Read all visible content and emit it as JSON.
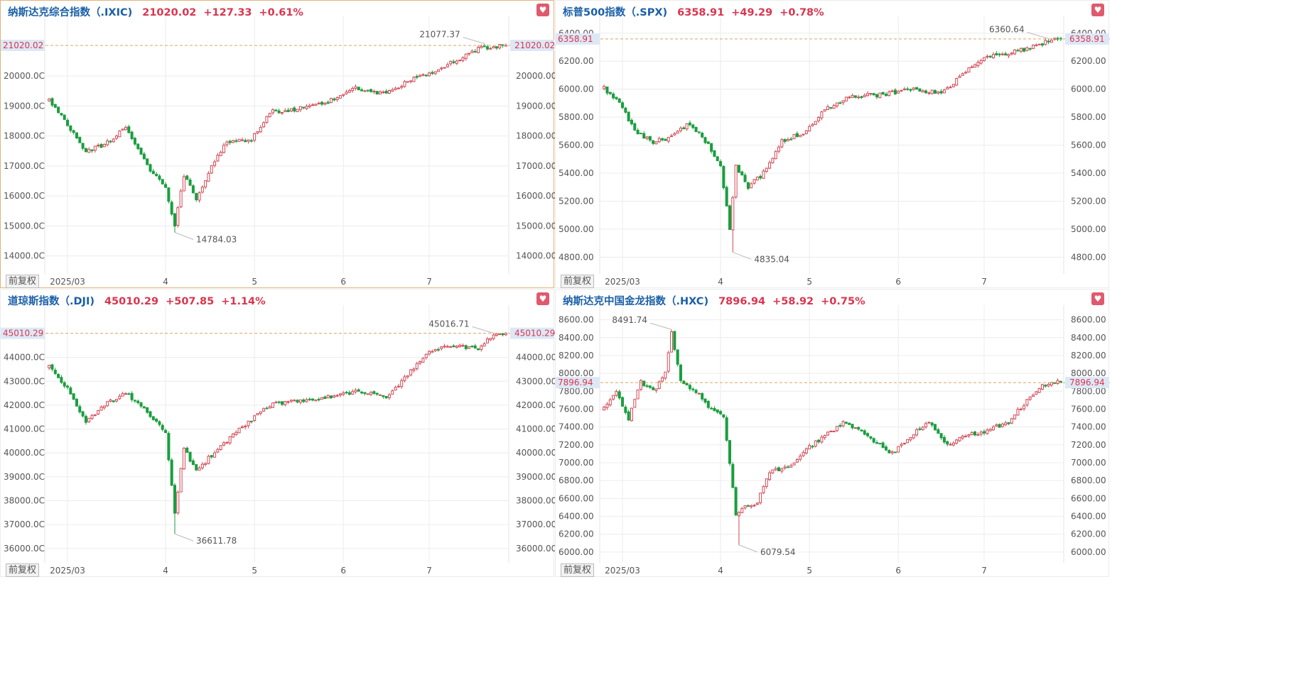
{
  "colors": {
    "up": "#d04a56",
    "down": "#1a9e3f",
    "header_name": "#1a5fa8",
    "quote": "#d9364f",
    "grid": "#ececec",
    "refline": "#e0a060",
    "heart": "#e05a6e"
  },
  "icons": {
    "favorite": "heart-icon"
  },
  "chart_data": [
    {
      "type": "candlestick",
      "name": "纳斯达克综合指数（.IXIC)",
      "last": "21020.02",
      "change": "+127.33",
      "change_pct": "+0.61%",
      "last_label": "21020.02",
      "y_ticks": [
        "20000.00",
        "19000.00",
        "18000.00",
        "17000.00",
        "16000.00",
        "15000.00",
        "14000.00"
      ],
      "y_ticks_left": [
        "20000.0C",
        "19000.0C",
        "18000.0C",
        "17000.0C",
        "16000.0C",
        "15000.0C",
        "14000.0C"
      ],
      "ylim": [
        13400,
        21800
      ],
      "x_ticks": [
        "2025/03",
        "4",
        "5",
        "6",
        "7"
      ],
      "x_tick_index": [
        6,
        38,
        67,
        96,
        124
      ],
      "n": 150,
      "high": {
        "label": "21077.37",
        "index": 142,
        "value": 21077.37
      },
      "low": {
        "label": "14784.03",
        "index": 41,
        "value": 14784.03
      },
      "anchors": [
        [
          0,
          19200
        ],
        [
          6,
          18400
        ],
        [
          12,
          17500
        ],
        [
          18,
          17700
        ],
        [
          25,
          18300
        ],
        [
          32,
          17000
        ],
        [
          38,
          16300
        ],
        [
          41,
          15000
        ],
        [
          44,
          16700
        ],
        [
          48,
          15900
        ],
        [
          52,
          16800
        ],
        [
          58,
          17800
        ],
        [
          66,
          17900
        ],
        [
          72,
          18800
        ],
        [
          80,
          18900
        ],
        [
          90,
          19100
        ],
        [
          100,
          19600
        ],
        [
          110,
          19400
        ],
        [
          118,
          19900
        ],
        [
          124,
          20100
        ],
        [
          132,
          20500
        ],
        [
          140,
          20900
        ],
        [
          146,
          21000
        ]
      ],
      "badge": "前复权"
    },
    {
      "type": "candlestick",
      "name": "标普500指数（.SPX)",
      "last": "6358.91",
      "change": "+49.29",
      "change_pct": "+0.78%",
      "last_label": "6358.91",
      "y_ticks": [
        "6400.00",
        "6200.00",
        "6000.00",
        "5800.00",
        "5600.00",
        "5400.00",
        "5200.00",
        "5000.00",
        "4800.00"
      ],
      "y_ticks_left": [
        "6400.00",
        "6200.00",
        "6000.00",
        "5800.00",
        "5600.00",
        "5400.00",
        "5200.00",
        "5000.00",
        "4800.00"
      ],
      "ylim": [
        4680,
        6480
      ],
      "x_ticks": [
        "2025/03",
        "4",
        "5",
        "6",
        "7"
      ],
      "x_tick_index": [
        6,
        38,
        67,
        96,
        124
      ],
      "n": 150,
      "high": {
        "label": "6360.64",
        "index": 145,
        "value": 6360.64
      },
      "low": {
        "label": "4835.04",
        "index": 42,
        "value": 4835.04
      },
      "anchors": [
        [
          0,
          6010
        ],
        [
          6,
          5870
        ],
        [
          10,
          5700
        ],
        [
          16,
          5620
        ],
        [
          22,
          5660
        ],
        [
          28,
          5760
        ],
        [
          34,
          5600
        ],
        [
          38,
          5450
        ],
        [
          41,
          5000
        ],
        [
          43,
          5450
        ],
        [
          47,
          5300
        ],
        [
          52,
          5400
        ],
        [
          58,
          5630
        ],
        [
          66,
          5700
        ],
        [
          72,
          5850
        ],
        [
          80,
          5950
        ],
        [
          90,
          5960
        ],
        [
          100,
          6000
        ],
        [
          110,
          5970
        ],
        [
          118,
          6120
        ],
        [
          124,
          6230
        ],
        [
          132,
          6260
        ],
        [
          140,
          6300
        ],
        [
          146,
          6360
        ]
      ],
      "badge": "前复权"
    },
    {
      "type": "candlestick",
      "name": "道琼斯指数（.DJI)",
      "last": "45010.29",
      "change": "+507.85",
      "change_pct": "+1.14%",
      "last_label": "45010.29",
      "y_ticks": [
        "44000.00",
        "43000.00",
        "42000.00",
        "41000.00",
        "40000.00",
        "39000.00",
        "38000.00",
        "37000.00",
        "36000.00"
      ],
      "y_ticks_left": [
        "44000.0C",
        "43000.0C",
        "42000.0C",
        "41000.0C",
        "40000.0C",
        "39000.0C",
        "38000.0C",
        "37000.0C",
        "36000.0C"
      ],
      "ylim": [
        35400,
        45950
      ],
      "x_ticks": [
        "2025/03",
        "4",
        "5",
        "6",
        "7"
      ],
      "x_tick_index": [
        6,
        38,
        67,
        96,
        124
      ],
      "n": 150,
      "high": {
        "label": "45016.71",
        "index": 145,
        "value": 45016.71
      },
      "low": {
        "label": "36611.78",
        "index": 41,
        "value": 36611.78
      },
      "anchors": [
        [
          0,
          43600
        ],
        [
          6,
          42700
        ],
        [
          12,
          41300
        ],
        [
          18,
          42000
        ],
        [
          25,
          42500
        ],
        [
          32,
          41700
        ],
        [
          38,
          40800
        ],
        [
          41,
          37500
        ],
        [
          44,
          40200
        ],
        [
          48,
          39200
        ],
        [
          52,
          39800
        ],
        [
          58,
          40500
        ],
        [
          66,
          41400
        ],
        [
          72,
          42000
        ],
        [
          80,
          42200
        ],
        [
          90,
          42300
        ],
        [
          100,
          42600
        ],
        [
          110,
          42300
        ],
        [
          118,
          43400
        ],
        [
          124,
          44300
        ],
        [
          132,
          44500
        ],
        [
          140,
          44400
        ],
        [
          146,
          45010
        ]
      ],
      "badge": "前复权"
    },
    {
      "type": "candlestick",
      "name": "纳斯达克中国金龙指数（.HXC)",
      "last": "7896.94",
      "change": "+58.92",
      "change_pct": "+0.75%",
      "last_label": "7896.94",
      "y_ticks": [
        "8600.00",
        "8400.00",
        "8200.00",
        "8000.00",
        "7800.00",
        "7600.00",
        "7400.00",
        "7200.00",
        "7000.00",
        "6800.00",
        "6600.00",
        "6400.00",
        "6200.00",
        "6000.00"
      ],
      "y_ticks_left": [
        "8600.00",
        "8400.00",
        "8200.00",
        "8000.00",
        "7800.00",
        "7600.00",
        "7400.00",
        "7200.00",
        "7000.00",
        "6800.00",
        "6600.00",
        "6400.00",
        "6200.00",
        "6000.00"
      ],
      "ylim": [
        5880,
        8700
      ],
      "x_ticks": [
        "2025/03",
        "4",
        "5",
        "6",
        "7"
      ],
      "x_tick_index": [
        6,
        38,
        67,
        96,
        124
      ],
      "n": 150,
      "high": {
        "label": "8491.74",
        "index": 22,
        "value": 8491.74
      },
      "low": {
        "label": "6079.54",
        "index": 44,
        "value": 6079.54
      },
      "anchors": [
        [
          0,
          7600
        ],
        [
          4,
          7800
        ],
        [
          8,
          7500
        ],
        [
          12,
          7900
        ],
        [
          16,
          7800
        ],
        [
          20,
          8000
        ],
        [
          22,
          8450
        ],
        [
          25,
          7900
        ],
        [
          30,
          7800
        ],
        [
          35,
          7600
        ],
        [
          39,
          7500
        ],
        [
          41,
          7000
        ],
        [
          43,
          6400
        ],
        [
          46,
          6500
        ],
        [
          50,
          6550
        ],
        [
          54,
          6900
        ],
        [
          60,
          6950
        ],
        [
          66,
          7150
        ],
        [
          72,
          7300
        ],
        [
          78,
          7450
        ],
        [
          86,
          7300
        ],
        [
          94,
          7100
        ],
        [
          100,
          7300
        ],
        [
          106,
          7450
        ],
        [
          112,
          7200
        ],
        [
          118,
          7300
        ],
        [
          124,
          7350
        ],
        [
          132,
          7450
        ],
        [
          138,
          7700
        ],
        [
          142,
          7850
        ],
        [
          146,
          7900
        ]
      ],
      "badge": "前复权"
    }
  ]
}
